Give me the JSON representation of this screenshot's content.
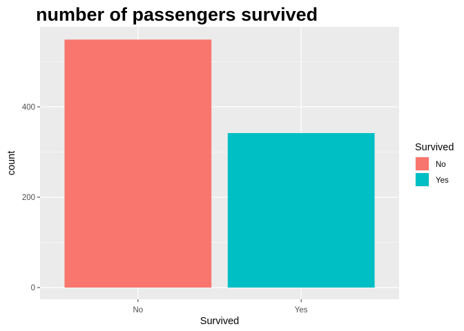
{
  "chart_data": {
    "type": "bar",
    "title": "number of passengers survived",
    "xlabel": "Survived",
    "ylabel": "count",
    "categories": [
      "No",
      "Yes"
    ],
    "values": [
      549,
      342
    ],
    "colors": [
      "#F8766D",
      "#00BFC4"
    ],
    "ylim": [
      0,
      575
    ],
    "yticks": [
      0,
      200,
      400
    ],
    "grid": true,
    "panel_background": "#EBEBEB",
    "legend": {
      "title": "Survived",
      "placement": "right",
      "entries": [
        "No",
        "Yes"
      ]
    }
  }
}
